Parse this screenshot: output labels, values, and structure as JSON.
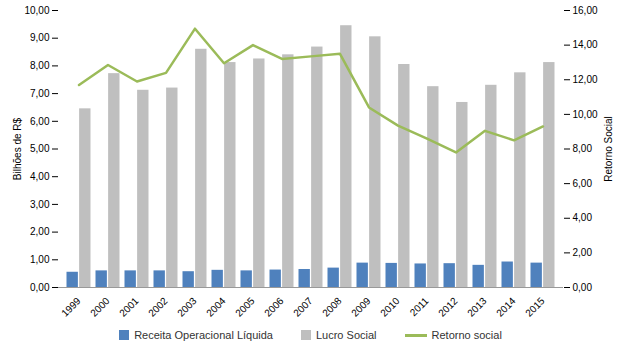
{
  "chart_data": {
    "type": "bar",
    "y_label": "Bilhões de R$",
    "y2_label": "Retorno Social",
    "categories": [
      "1999",
      "2000",
      "2001",
      "2002",
      "2003",
      "2004",
      "2005",
      "2006",
      "2007",
      "2008",
      "2009",
      "2010",
      "2011",
      "2012",
      "2013",
      "2014",
      "2015"
    ],
    "series": [
      {
        "name": "Receita Operacional Líquida",
        "type": "bar",
        "color": "#4f81bd",
        "values": [
          0.55,
          0.6,
          0.6,
          0.6,
          0.57,
          0.62,
          0.6,
          0.63,
          0.65,
          0.7,
          0.88,
          0.87,
          0.85,
          0.86,
          0.8,
          0.92,
          0.88
        ]
      },
      {
        "name": "Lucro Social",
        "type": "bar",
        "color": "#bfbfbf",
        "values": [
          6.45,
          7.72,
          7.12,
          7.2,
          8.6,
          8.12,
          8.25,
          8.4,
          8.68,
          9.45,
          9.05,
          8.05,
          7.25,
          6.68,
          7.3,
          7.75,
          8.12
        ]
      },
      {
        "name": "Retorno social",
        "type": "line",
        "axis": "y2",
        "color": "#9bbb59",
        "values": [
          11.7,
          12.85,
          11.9,
          12.4,
          14.95,
          12.95,
          14.0,
          13.2,
          13.35,
          13.5,
          10.4,
          9.35,
          8.6,
          7.8,
          9.05,
          8.5,
          9.3
        ]
      }
    ],
    "ylim": [
      0,
      10
    ],
    "yticks": [
      {
        "value": 0,
        "label": "0,00"
      },
      {
        "value": 1,
        "label": "1,00"
      },
      {
        "value": 2,
        "label": "2,00"
      },
      {
        "value": 3,
        "label": "3,00"
      },
      {
        "value": 4,
        "label": "4,00"
      },
      {
        "value": 5,
        "label": "5,00"
      },
      {
        "value": 6,
        "label": "6,00"
      },
      {
        "value": 7,
        "label": "7,00"
      },
      {
        "value": 8,
        "label": "8,00"
      },
      {
        "value": 9,
        "label": "9,00"
      },
      {
        "value": 10,
        "label": "10,00"
      }
    ],
    "y2lim": [
      0,
      16
    ],
    "y2ticks": [
      {
        "value": 0,
        "label": "0,00"
      },
      {
        "value": 2,
        "label": "2,00"
      },
      {
        "value": 4,
        "label": "4,00"
      },
      {
        "value": 6,
        "label": "6,00"
      },
      {
        "value": 8,
        "label": "8,00"
      },
      {
        "value": 10,
        "label": "10,00"
      },
      {
        "value": 12,
        "label": "12,00"
      },
      {
        "value": 14,
        "label": "14,00"
      },
      {
        "value": 16,
        "label": "16,00"
      }
    ],
    "legend": "bottom",
    "grid": false
  }
}
